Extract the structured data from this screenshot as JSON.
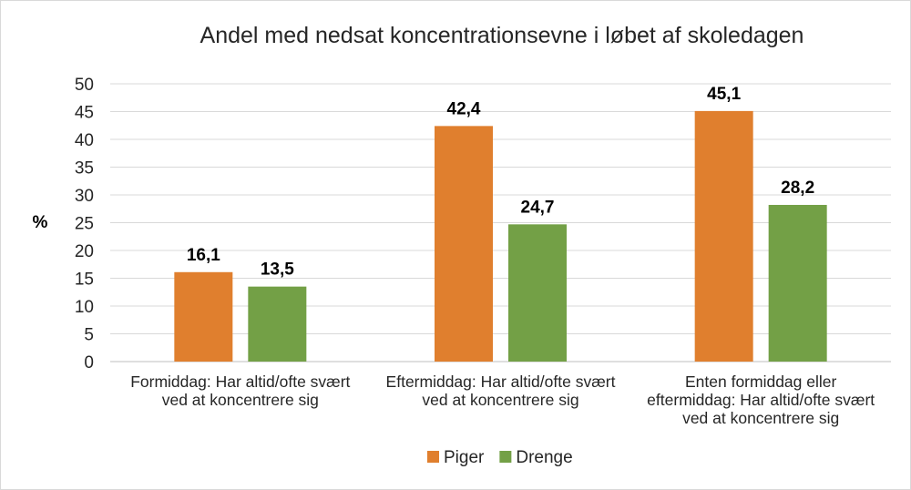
{
  "chart_data": {
    "type": "bar",
    "title": "Andel med nedsat koncentrationsevne i løbet af skoledagen",
    "ylabel": "%",
    "xlabel": "",
    "ylim": [
      0,
      50
    ],
    "yticks": [
      "0",
      "5",
      "10",
      "15",
      "20",
      "25",
      "30",
      "35",
      "40",
      "45",
      "50"
    ],
    "grid": true,
    "legend_position": "bottom",
    "categories": [
      [
        "Formiddag: Har altid/ofte svært",
        "ved at koncentrere sig"
      ],
      [
        "Eftermiddag: Har altid/ofte svært",
        "ved at koncentrere sig"
      ],
      [
        "Enten formiddag eller",
        "eftermiddag: Har altid/ofte svært",
        "ved at koncentrere sig"
      ]
    ],
    "series": [
      {
        "name": "Piger",
        "color": "#E07F2E",
        "values": [
          16.1,
          42.4,
          45.1
        ],
        "labels": [
          "16,1",
          "42,4",
          "45,1"
        ]
      },
      {
        "name": "Drenge",
        "color": "#73A046",
        "values": [
          13.5,
          24.7,
          28.2
        ],
        "labels": [
          "13,5",
          "24,7",
          "28,2"
        ]
      }
    ]
  }
}
